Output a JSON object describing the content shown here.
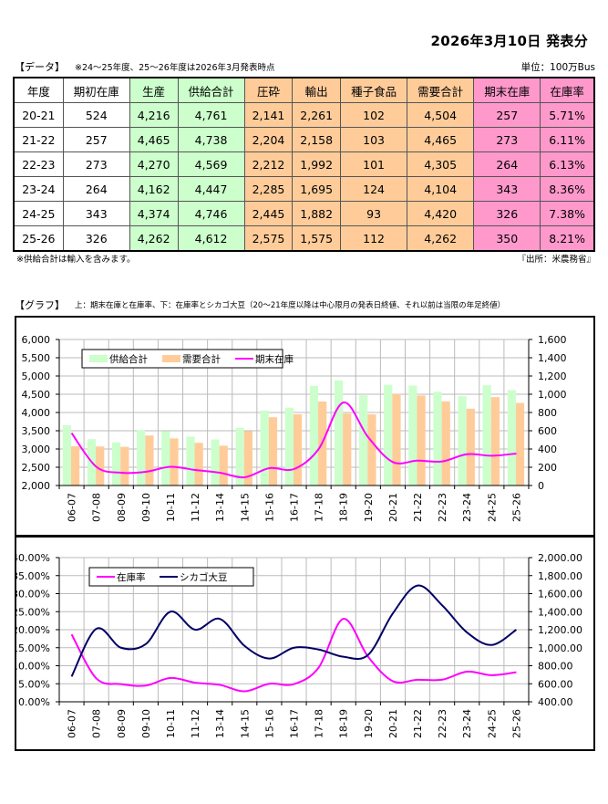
{
  "header": {
    "title": "2026年3月10日 発表分",
    "data_label": "【データ】",
    "data_note": "※24～25年度、25～26年度は2026年3月発表時点",
    "unit": "単位：100万Bus",
    "footnote_left": "※供給合計は輸入を含みます。",
    "footnote_right": "『出所：米農務省』",
    "graph_label": "【グラフ】",
    "graph_note": "上：期末在庫と在庫率、下：在庫率とシカゴ大豆（20～21年度以降は中心限月の発表日終値、それ以前は当限の年足終値）"
  },
  "table": {
    "columns": [
      "年度",
      "期初在庫",
      "生産",
      "供給合計",
      "圧砕",
      "輸出",
      "種子食品",
      "需要合計",
      "期末在庫",
      "在庫率"
    ],
    "column_colors": [
      "#ffffff",
      "#ffffff",
      "#ccffcc",
      "#ccffcc",
      "#ffcc99",
      "#ffcc99",
      "#ffcc99",
      "#ffcc99",
      "#ff99cc",
      "#ff99cc"
    ],
    "rows": [
      [
        "20-21",
        "524",
        "4,216",
        "4,761",
        "2,141",
        "2,261",
        "102",
        "4,504",
        "257",
        "5.71%"
      ],
      [
        "21-22",
        "257",
        "4,465",
        "4,738",
        "2,204",
        "2,158",
        "103",
        "4,465",
        "273",
        "6.11%"
      ],
      [
        "22-23",
        "273",
        "4,270",
        "4,569",
        "2,212",
        "1,992",
        "101",
        "4,305",
        "264",
        "6.13%"
      ],
      [
        "23-24",
        "264",
        "4,162",
        "4,447",
        "2,285",
        "1,695",
        "124",
        "4,104",
        "343",
        "8.36%"
      ],
      [
        "24-25",
        "343",
        "4,374",
        "4,746",
        "2,445",
        "1,882",
        "93",
        "4,420",
        "326",
        "7.38%"
      ],
      [
        "25-26",
        "326",
        "4,262",
        "4,612",
        "2,575",
        "1,575",
        "112",
        "4,262",
        "350",
        "8.21%"
      ]
    ]
  },
  "chart_data": [
    {
      "type": "bar",
      "title": "期末在庫と在庫率",
      "categories": [
        "06-07",
        "07-08",
        "08-09",
        "09-10",
        "10-11",
        "11-12",
        "13-14",
        "14-15",
        "15-16",
        "16-17",
        "17-18",
        "18-19",
        "19-20",
        "20-21",
        "21-22",
        "22-23",
        "23-24",
        "24-25",
        "25-26"
      ],
      "series": [
        {
          "name": "供給合計",
          "kind": "bar",
          "axis": "left",
          "color": "#ccffcc",
          "values": [
            3650,
            3270,
            3180,
            3520,
            3490,
            3340,
            3260,
            3580,
            4050,
            4130,
            4730,
            4880,
            4470,
            4761,
            4738,
            4569,
            4447,
            4746,
            4612
          ]
        },
        {
          "name": "需要合計",
          "kind": "bar",
          "axis": "left",
          "color": "#ffcc99",
          "values": [
            3075,
            3070,
            3060,
            3370,
            3290,
            3170,
            3090,
            3490,
            3870,
            3950,
            4300,
            3970,
            3950,
            4504,
            4465,
            4305,
            4104,
            4420,
            4262
          ]
        },
        {
          "name": "期末在庫",
          "kind": "line",
          "axis": "right",
          "color": "#ff00ff",
          "values": [
            575,
            205,
            140,
            150,
            205,
            170,
            140,
            90,
            190,
            180,
            400,
            910,
            530,
            257,
            273,
            264,
            343,
            326,
            350
          ]
        }
      ],
      "left_axis": {
        "min": 2000,
        "max": 6000,
        "step": 500,
        "tick_labels": [
          "2,000",
          "2,500",
          "3,000",
          "3,500",
          "4,000",
          "4,500",
          "5,000",
          "5,500",
          "6,000"
        ]
      },
      "right_axis": {
        "min": 0,
        "max": 1600,
        "step": 200,
        "tick_labels": [
          "0",
          "200",
          "400",
          "600",
          "800",
          "1,000",
          "1,200",
          "1,400",
          "1,600"
        ]
      },
      "grid": true,
      "legend": "top-left"
    },
    {
      "type": "line",
      "title": "在庫率とシカゴ大豆",
      "categories": [
        "06-07",
        "07-08",
        "08-09",
        "09-10",
        "10-11",
        "11-12",
        "13-14",
        "14-15",
        "15-16",
        "16-17",
        "17-18",
        "18-19",
        "19-20",
        "20-21",
        "21-22",
        "22-23",
        "23-24",
        "24-25",
        "25-26"
      ],
      "series": [
        {
          "name": "在庫率",
          "axis": "left",
          "color": "#ff00ff",
          "unit": "%",
          "values": [
            18.7,
            6.5,
            4.9,
            4.5,
            6.6,
            5.3,
            4.7,
            2.9,
            5.0,
            4.9,
            9.5,
            23.0,
            12.5,
            5.71,
            6.11,
            6.13,
            8.36,
            7.38,
            8.21
          ]
        },
        {
          "name": "シカゴ大豆",
          "axis": "right",
          "color": "#000066",
          "values": [
            680,
            1210,
            1000,
            1040,
            1400,
            1200,
            1320,
            1020,
            880,
            1000,
            980,
            900,
            920,
            1380,
            1690,
            1470,
            1170,
            1030,
            1200
          ]
        }
      ],
      "left_axis": {
        "min": 0,
        "max": 40,
        "step": 5,
        "tick_labels": [
          "0.00%",
          "5.00%",
          "10.00%",
          "15.00%",
          "20.00%",
          "25.00%",
          "30.00%",
          "35.00%",
          "40.00%"
        ]
      },
      "right_axis": {
        "min": 400,
        "max": 2000,
        "step": 200,
        "tick_labels": [
          "400.00",
          "600.00",
          "800.00",
          "1,000.00",
          "1,200.00",
          "1,400.00",
          "1,600.00",
          "1,800.00",
          "2,000.00"
        ]
      },
      "grid": true,
      "legend": "top-left"
    }
  ]
}
